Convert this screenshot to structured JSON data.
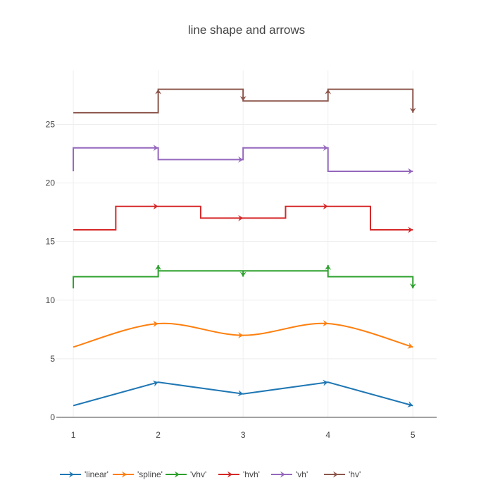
{
  "chart_data": {
    "type": "line",
    "title": "line shape and arrows",
    "xlabel": "",
    "ylabel": "",
    "x": [
      1,
      2,
      3,
      4,
      5
    ],
    "xlim": [
      0.8,
      5.28
    ],
    "ylim": [
      0,
      29.6
    ],
    "x_ticks": [
      1,
      2,
      3,
      4,
      5
    ],
    "y_ticks": [
      0,
      5,
      10,
      15,
      20,
      25
    ],
    "grid": true,
    "legend_position": "bottom",
    "legend_orientation": "horizontal",
    "colors": {
      "grid": "#eeeeee",
      "zero_line": "#444444",
      "tick_text": "#444444",
      "title": "#444444"
    },
    "series": [
      {
        "name": "'linear'",
        "shape": "linear",
        "color": "#1f77b4",
        "values": [
          1,
          3,
          2,
          3,
          1
        ]
      },
      {
        "name": "'spline'",
        "shape": "spline",
        "color": "#ff7f0e",
        "values": [
          6,
          8,
          7,
          8,
          6
        ]
      },
      {
        "name": "'vhv'",
        "shape": "vhv",
        "color": "#2ca02c",
        "values": [
          11,
          13,
          12,
          13,
          11
        ]
      },
      {
        "name": "'hvh'",
        "shape": "hvh",
        "color": "#d62728",
        "values": [
          16,
          18,
          17,
          18,
          16
        ]
      },
      {
        "name": "'vh'",
        "shape": "vh",
        "color": "#9467bd",
        "values": [
          21,
          23,
          22,
          23,
          21
        ]
      },
      {
        "name": "'hv'",
        "shape": "hv",
        "color": "#8c564b",
        "values": [
          26,
          28,
          27,
          28,
          26
        ]
      }
    ]
  }
}
